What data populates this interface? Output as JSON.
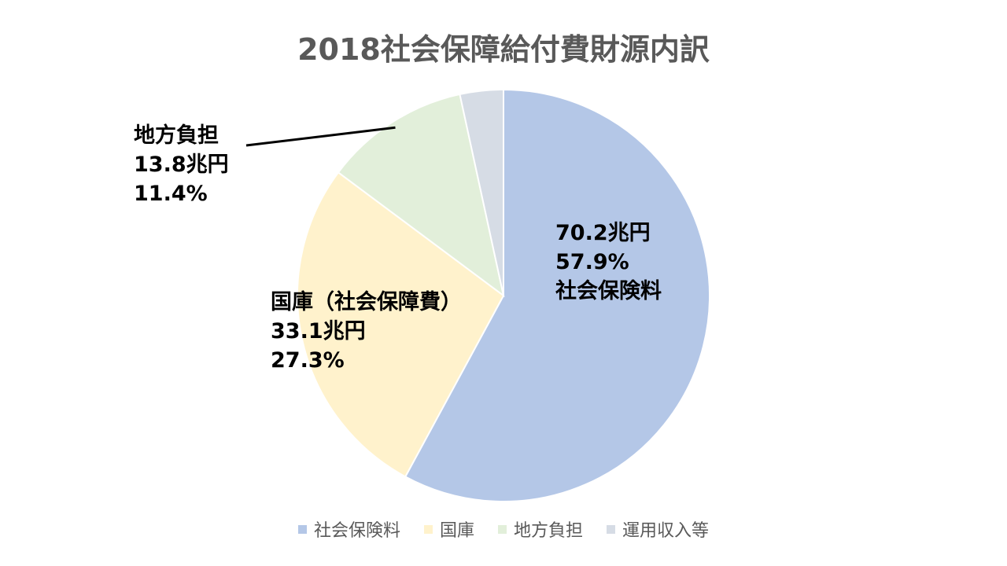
{
  "chart_data": {
    "type": "pie",
    "title": "2018社会保障給付費財源内訳",
    "unit": "兆円",
    "legend_position": "bottom",
    "slices": [
      {
        "name": "社会保険料",
        "value": 70.2,
        "percent": 57.9,
        "color": "#B4C7E7",
        "label_lines": [
          "70.2兆円",
          "57.9%",
          "社会保険料"
        ]
      },
      {
        "name": "国庫",
        "value": 33.1,
        "percent": 27.3,
        "color": "#FFF2CC",
        "label_lines": [
          "国庫（社会保障費）",
          "33.1兆円",
          "27.3%"
        ]
      },
      {
        "name": "地方負担",
        "value": 13.8,
        "percent": 11.4,
        "color": "#E2EFDA",
        "label_lines": [
          "地方負担",
          "13.8兆円",
          "11.4%"
        ]
      },
      {
        "name": "運用収入等",
        "value": null,
        "percent": 3.4,
        "color": "#D6DCE5",
        "label_lines": []
      }
    ]
  }
}
